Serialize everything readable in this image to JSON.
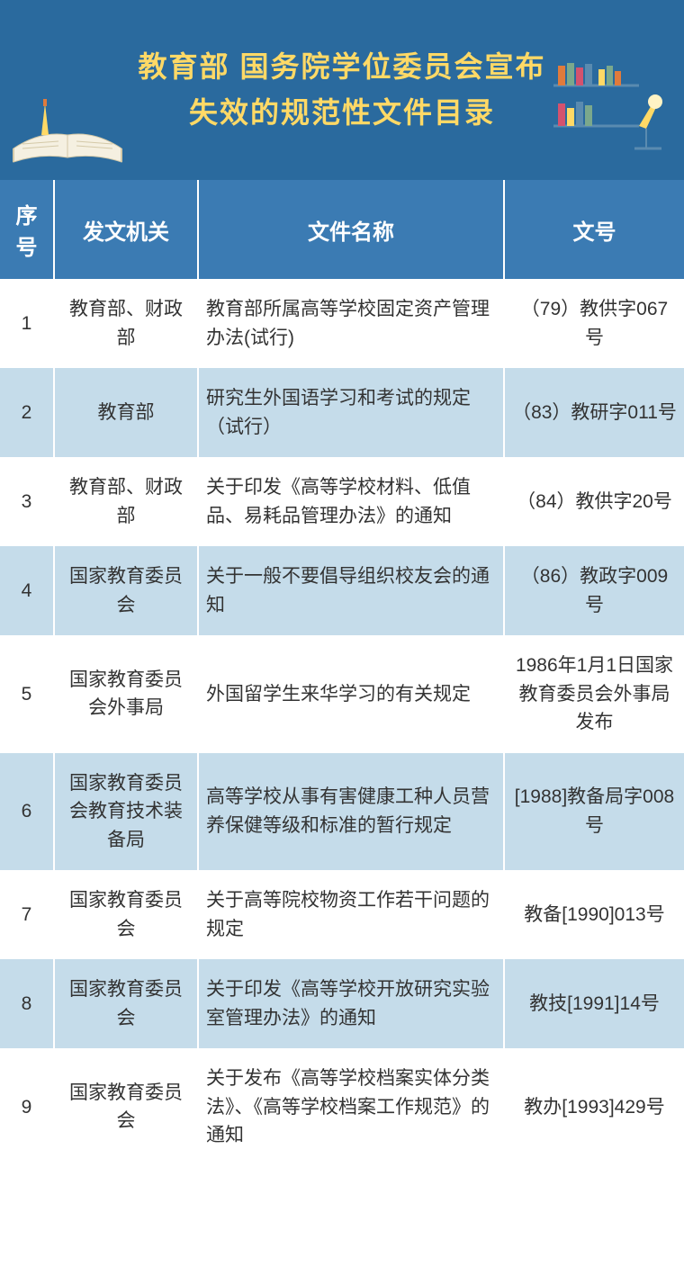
{
  "header": {
    "title_line1": "教育部 国务院学位委员会宣布",
    "title_line2": "失效的规范性文件目录",
    "bg_color": "#2a6a9e",
    "title_color": "#ffd966"
  },
  "table": {
    "header_bg": "#3b7bb3",
    "row_even_bg": "#c5dcea",
    "row_odd_bg": "#ffffff",
    "columns": [
      "序号",
      "发文机关",
      "文件名称",
      "文号"
    ],
    "rows": [
      {
        "seq": "1",
        "org": "教育部、财政部",
        "name": "教育部所属高等学校固定资产管理办法(试行)",
        "num": "（79）教供字067号"
      },
      {
        "seq": "2",
        "org": "教育部",
        "name": "研究生外国语学习和考试的规定（试行）",
        "num": "（83）教研字011号"
      },
      {
        "seq": "3",
        "org": "教育部、财政部",
        "name": "关于印发《高等学校材料、低值品、易耗品管理办法》的通知",
        "num": "（84）教供字20号"
      },
      {
        "seq": "4",
        "org": "国家教育委员会",
        "name": "关于一般不要倡导组织校友会的通知",
        "num": "（86）教政字009号"
      },
      {
        "seq": "5",
        "org": "国家教育委员会外事局",
        "name": "外国留学生来华学习的有关规定",
        "num": "1986年1月1日国家教育委员会外事局发布"
      },
      {
        "seq": "6",
        "org": "国家教育委员会教育技术装备局",
        "name": "高等学校从事有害健康工种人员营养保健等级和标准的暂行规定",
        "num": "[1988]教备局字008号"
      },
      {
        "seq": "7",
        "org": "国家教育委员会",
        "name": "关于高等院校物资工作若干问题的规定",
        "num": "教备[1990]013号"
      },
      {
        "seq": "8",
        "org": "国家教育委员会",
        "name": "关于印发《高等学校开放研究实验室管理办法》的通知",
        "num": "教技[1991]14号"
      },
      {
        "seq": "9",
        "org": "国家教育委员会",
        "name": "关于发布《高等学校档案实体分类法》、《高等学校档案工作规范》的通知",
        "num": "教办[1993]429号"
      }
    ]
  }
}
